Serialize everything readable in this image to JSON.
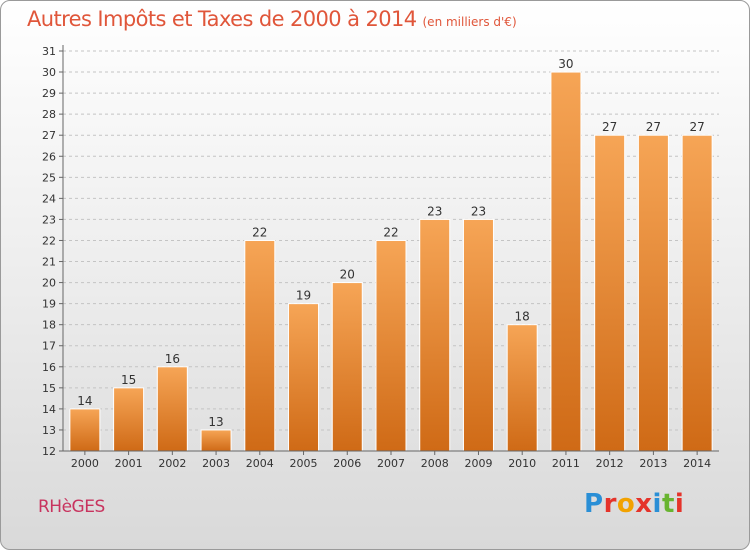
{
  "chart_data": {
    "type": "bar",
    "title": "Autres Impôts et Taxes de 2000 à 2014",
    "subtitle": "(en milliers d'€)",
    "categories": [
      "2000",
      "2001",
      "2002",
      "2003",
      "2004",
      "2005",
      "2006",
      "2007",
      "2008",
      "2009",
      "2010",
      "2011",
      "2012",
      "2013",
      "2014"
    ],
    "values": [
      14,
      15,
      16,
      13,
      22,
      19,
      20,
      22,
      23,
      23,
      18,
      30,
      27,
      27,
      27
    ],
    "xlabel": "",
    "ylabel": "",
    "ylim": [
      12,
      31
    ],
    "yticks": [
      "12",
      "13",
      "14",
      "15",
      "16",
      "17",
      "18",
      "19",
      "20",
      "21",
      "22",
      "23",
      "24",
      "25",
      "26",
      "27",
      "28",
      "29",
      "30",
      "31"
    ],
    "grid": true,
    "bar_color_top": "#f6a556",
    "bar_color_bottom": "#cf6a16",
    "bar_edge_color": "#ffffff"
  },
  "footer": {
    "commune": "RHèGES",
    "logo_letters": [
      "P",
      "r",
      "o",
      "x",
      "i",
      "t",
      "i"
    ]
  },
  "colors": {
    "title": "#e0563a",
    "commune": "#c8335e"
  }
}
